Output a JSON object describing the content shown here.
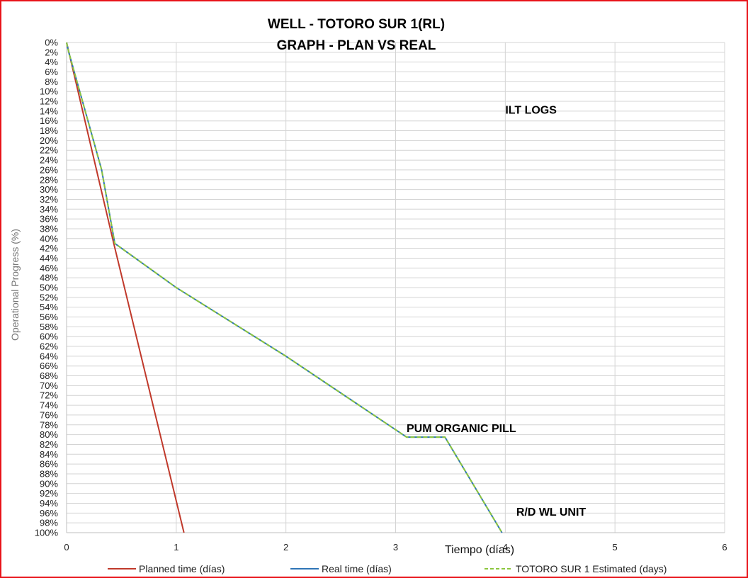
{
  "chart_data": {
    "type": "line",
    "title": "WELL -  TOTORO SUR 1(RL)",
    "subtitle": "GRAPH  - PLAN VS REAL",
    "xlabel": "Tiempo (días)",
    "ylabel": "Operational Progress (%)",
    "xlim": [
      0,
      6
    ],
    "ylim": [
      0,
      100
    ],
    "y_reversed": true,
    "x_ticks": [
      "0",
      "1",
      "2",
      "3",
      "4",
      "5",
      "6"
    ],
    "y_ticks": [
      "0%",
      "2%",
      "4%",
      "6%",
      "8%",
      "10%",
      "12%",
      "14%",
      "16%",
      "18%",
      "20%",
      "22%",
      "24%",
      "26%",
      "28%",
      "30%",
      "32%",
      "34%",
      "36%",
      "38%",
      "40%",
      "42%",
      "44%",
      "46%",
      "48%",
      "50%",
      "52%",
      "54%",
      "56%",
      "58%",
      "60%",
      "62%",
      "64%",
      "66%",
      "68%",
      "70%",
      "72%",
      "74%",
      "76%",
      "78%",
      "80%",
      "82%",
      "84%",
      "86%",
      "88%",
      "90%",
      "92%",
      "94%",
      "96%",
      "98%",
      "100%"
    ],
    "grid": true,
    "legend_position": "bottom",
    "series": [
      {
        "name": "Planned time (días)",
        "color": "#c0392b",
        "style": "solid",
        "points": [
          [
            0,
            0
          ],
          [
            0.43,
            41
          ],
          [
            1.07,
            100
          ]
        ]
      },
      {
        "name": "Real time (días)",
        "color": "#2e75b6",
        "style": "solid",
        "points": [
          [
            0,
            0
          ],
          [
            0.02,
            2
          ],
          [
            0.22,
            18
          ],
          [
            0.32,
            26
          ],
          [
            0.44,
            41
          ],
          [
            1.0,
            50
          ],
          [
            2.0,
            64
          ],
          [
            3.1,
            80.5
          ],
          [
            3.45,
            80.5
          ],
          [
            3.97,
            100
          ]
        ]
      },
      {
        "name": "TOTORO SUR 1  Estimated (days)",
        "color": "#8cc63e",
        "style": "dashed",
        "points": [
          [
            0,
            0
          ],
          [
            0.02,
            2
          ],
          [
            0.22,
            18
          ],
          [
            0.32,
            26
          ],
          [
            0.44,
            41
          ],
          [
            1.0,
            50
          ],
          [
            2.0,
            64
          ],
          [
            3.1,
            80.5
          ],
          [
            3.45,
            80.5
          ],
          [
            3.97,
            100
          ]
        ]
      }
    ],
    "annotations": [
      {
        "text": "ILT LOGS",
        "x": 4.0,
        "y": 14.5
      },
      {
        "text": "PUM ORGANIC PILL",
        "x": 3.1,
        "y": 79.5
      },
      {
        "text": "R/D WL UNIT",
        "x": 4.1,
        "y": 96.5
      }
    ]
  }
}
